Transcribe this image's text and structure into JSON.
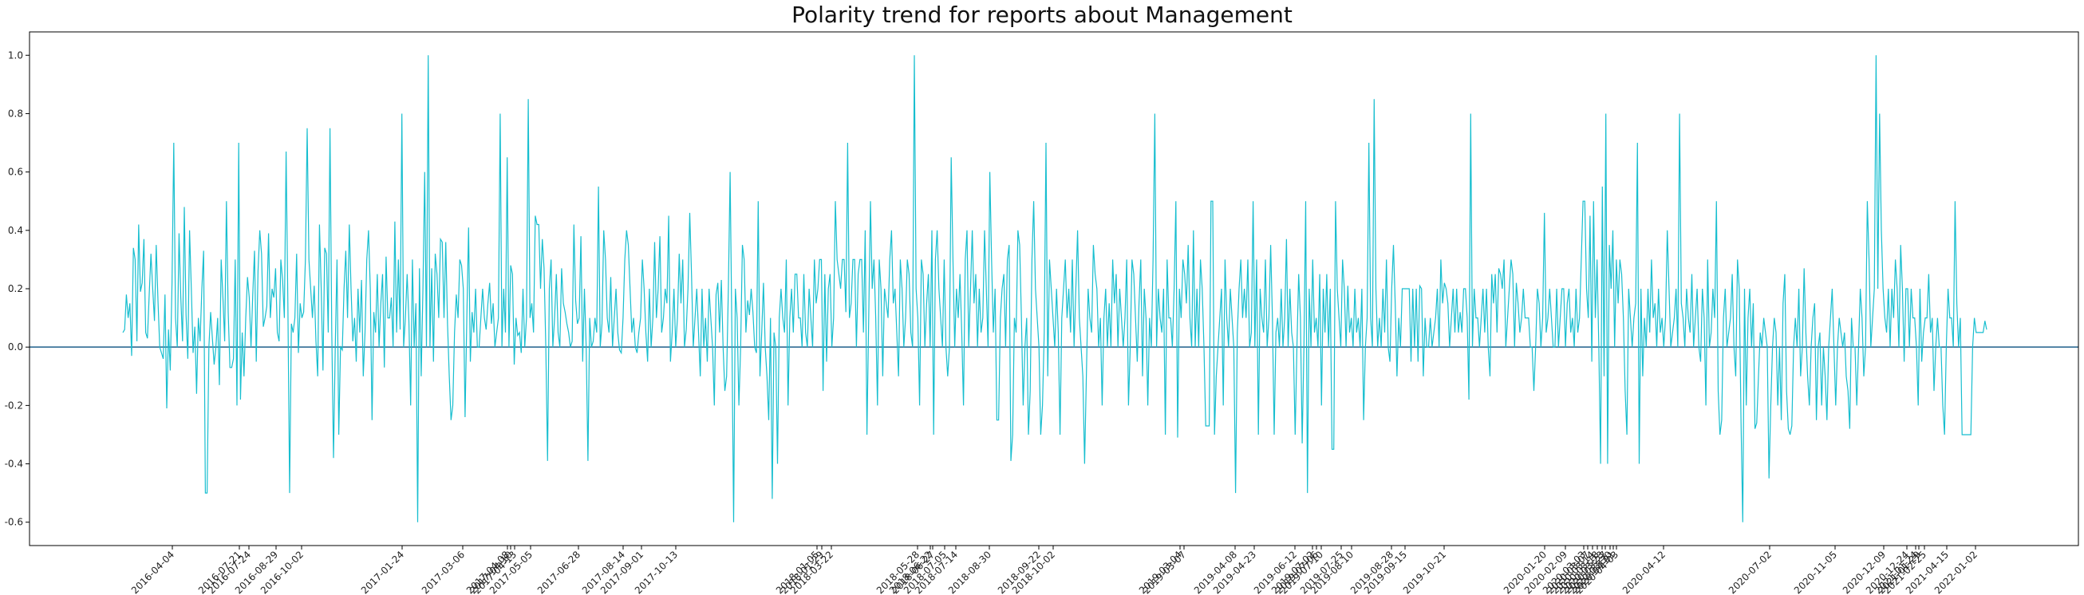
{
  "chart_data": {
    "type": "line",
    "title": "Polarity trend for reports about Management",
    "xlabel": "",
    "ylabel": "",
    "ylim": [
      -0.68,
      1.08
    ],
    "yticks": [
      -0.6,
      -0.4,
      -0.2,
      0.0,
      0.2,
      0.4,
      0.6,
      0.8,
      1.0
    ],
    "yticklabels": [
      "-0.6",
      "-0.4",
      "-0.2",
      "0.0",
      "0.2",
      "0.4",
      "0.6",
      "0.8",
      "1.0"
    ],
    "xticklabels": [
      "2016-04-04",
      "2016-07-21",
      "2016-07-24",
      "2016-08-29",
      "2016-10-02",
      "2017-01-24",
      "2017-03-06",
      "2017-04-08",
      "2017-04-10",
      "2017-04-13",
      "2017-05-05",
      "2017-06-28",
      "2017-08-14",
      "2017-09-01",
      "2017-10-13",
      "2018-01-05",
      "2018-01-29",
      "2018-03-22",
      "2018-05-28",
      "2018-06-22",
      "2018-06-27",
      "2018-07-05",
      "2018-07-14",
      "2018-08-30",
      "2018-09-22",
      "2018-10-02",
      "2019-03-04",
      "2019-03-07",
      "2019-04-08",
      "2019-04-23",
      "2019-06-12",
      "2019-07-02",
      "2019-07-06",
      "2019-07-10",
      "2019-07-25",
      "2019-08-10",
      "2019-08-28",
      "2019-09-15",
      "2019-10-21",
      "2020-01-20",
      "2020-02-09",
      "2020-03-03",
      "2020-03-07",
      "2020-03-14",
      "2020-03-18",
      "2020-03-23",
      "2020-03-27",
      "2020-03-30",
      "2020-04-01",
      "2020-04-03",
      "2020-04-12",
      "2020-07-02",
      "2020-11-05",
      "2020-12-09",
      "2020-12-24",
      "2021-01-24",
      "2021-01-29",
      "2021-02-25",
      "2021-04-15",
      "2022-01-02"
    ],
    "horizontal_line": 0.0,
    "grid": false,
    "legend": "none",
    "colors": {
      "series": "#17becf",
      "zero_line": "#1f5f8b",
      "axes": "#000000"
    },
    "series": [
      {
        "values": [
          0.05,
          0.06,
          0.18,
          0.1,
          0.15,
          -0.03,
          0.34,
          0.3,
          0.02,
          0.42,
          0.19,
          0.22,
          0.37,
          0.05,
          0.03,
          0.18,
          0.32,
          0.2,
          0.09,
          0.35,
          0.16,
          0.0,
          -0.02,
          -0.04,
          0.18,
          -0.21,
          0.06,
          -0.08,
          0.22,
          0.7,
          0.1,
          0.0,
          0.39,
          0.17,
          0.02,
          0.48,
          0.11,
          -0.04,
          0.4,
          0.2,
          -0.02,
          0.07,
          -0.16,
          0.1,
          0.02,
          0.2,
          0.33,
          -0.5,
          -0.5,
          0.0,
          0.12,
          0.03,
          -0.06,
          0.0,
          0.1,
          -0.13,
          0.3,
          0.17,
          0.02,
          0.5,
          0.12,
          -0.07,
          -0.07,
          -0.04,
          0.3,
          -0.2,
          0.7,
          -0.18,
          0.05,
          -0.1,
          0.1,
          0.24,
          0.17,
          0.0,
          0.18,
          0.33,
          -0.05,
          0.26,
          0.4,
          0.32,
          0.07,
          0.1,
          0.14,
          0.39,
          0.1,
          0.2,
          0.17,
          0.27,
          0.05,
          0.02,
          0.3,
          0.23,
          0.1,
          0.67,
          0.15,
          -0.5,
          0.08,
          0.05,
          0.1,
          0.32,
          -0.02,
          0.15,
          0.1,
          0.12,
          0.3,
          0.75,
          0.3,
          0.2,
          0.1,
          0.21,
          0.02,
          -0.1,
          0.42,
          0.2,
          -0.08,
          0.34,
          0.32,
          0.05,
          0.75,
          0.06,
          -0.38,
          0.0,
          0.3,
          -0.3,
          0.0,
          -0.01,
          0.2,
          0.33,
          0.1,
          0.42,
          0.2,
          0.02,
          0.1,
          -0.05,
          0.2,
          0.05,
          0.23,
          -0.1,
          0.05,
          0.3,
          0.4,
          0.2,
          -0.25,
          0.12,
          0.05,
          0.25,
          0.0,
          0.15,
          0.25,
          -0.07,
          0.31,
          0.1,
          0.1,
          0.17,
          0.0,
          0.43,
          0.05,
          0.3,
          0.06,
          0.8,
          0.0,
          0.1,
          0.25,
          0.09,
          -0.2,
          0.3,
          0.0,
          0.15,
          -0.6,
          0.27,
          -0.1,
          0.2,
          0.6,
          0.0,
          1.0,
          0.0,
          0.27,
          -0.05,
          0.32,
          0.25,
          0.1,
          0.37,
          0.36,
          0.1,
          0.36,
          0.08,
          -0.1,
          -0.25,
          -0.2,
          0.05,
          0.18,
          0.1,
          0.3,
          0.28,
          0.2,
          -0.24,
          0.1,
          0.41,
          -0.05,
          0.12,
          0.05,
          0.2,
          0.0,
          0.0,
          0.1,
          0.2,
          0.1,
          0.06,
          0.15,
          0.22,
          0.08,
          0.15,
          0.0,
          0.05,
          0.1,
          0.8,
          0.0,
          0.2,
          0.05,
          0.65,
          0.0,
          0.28,
          0.25,
          -0.06,
          0.1,
          0.04,
          0.05,
          -0.02,
          0.2,
          0.0,
          0.1,
          0.85,
          0.1,
          0.15,
          0.05,
          0.45,
          0.42,
          0.42,
          0.2,
          0.37,
          0.27,
          0.0,
          -0.39,
          0.2,
          0.3,
          0.0,
          0.1,
          0.25,
          0.05,
          0.0,
          0.27,
          0.15,
          0.12,
          0.08,
          0.05,
          0.0,
          0.02,
          0.42,
          0.16,
          0.08,
          0.1,
          0.38,
          -0.05,
          0.2,
          0.0,
          -0.39,
          0.1,
          0.0,
          0.02,
          0.1,
          0.05,
          0.55,
          0.0,
          0.08,
          0.4,
          0.3,
          0.1,
          0.05,
          0.24,
          0.0,
          0.1,
          0.2,
          0.05,
          -0.01,
          -0.02,
          0.1,
          0.3,
          0.4,
          0.35,
          0.2,
          0.05,
          0.1,
          0.0,
          -0.02,
          0.05,
          0.1,
          0.3,
          0.2,
          0.05,
          -0.05,
          0.2,
          0.0,
          0.1,
          0.36,
          0.1,
          0.2,
          0.38,
          0.05,
          0.1,
          0.2,
          0.15,
          0.45,
          -0.05,
          0.05,
          0.2,
          0.0,
          0.1,
          0.32,
          0.15,
          0.3,
          0.0,
          0.06,
          0.2,
          0.46,
          0.25,
          0.0,
          0.1,
          0.2,
          0.05,
          -0.1,
          0.2,
          0.0,
          0.1,
          -0.05,
          0.2,
          0.1,
          0.0,
          -0.2,
          0.18,
          0.22,
          0.05,
          0.23,
          0.0,
          -0.15,
          -0.1,
          0.2,
          0.6,
          0.05,
          -0.6,
          0.2,
          0.1,
          -0.2,
          0.0,
          0.35,
          0.3,
          0.05,
          0.16,
          0.11,
          0.2,
          0.12,
          0.0,
          -0.02,
          0.5,
          -0.1,
          0.05,
          0.22,
          0.0,
          -0.1,
          -0.25,
          0.1,
          -0.52,
          0.05,
          0.0,
          -0.4,
          0.1,
          0.2,
          0.1,
          0.05,
          0.3,
          -0.2,
          0.1,
          0.2,
          0.05,
          0.25,
          0.25,
          0.1,
          0.1,
          0.0,
          0.25,
          0.05,
          0.0,
          0.2,
          0.1,
          0.0,
          0.3,
          0.15,
          0.2,
          0.3,
          0.3,
          -0.15,
          0.25,
          -0.05,
          0.2,
          0.25,
          0.0,
          0.1,
          0.5,
          0.3,
          0.25,
          0.2,
          0.3,
          0.3,
          0.12,
          0.7,
          0.1,
          0.15,
          0.3,
          0.3,
          0.0,
          0.25,
          0.3,
          0.3,
          0.05,
          0.4,
          -0.3,
          0.1,
          0.5,
          0.2,
          0.3,
          0.1,
          -0.2,
          0.3,
          0.2,
          -0.1,
          0.2,
          0.15,
          0.1,
          0.3,
          0.4,
          0.15,
          0.2,
          0.05,
          -0.1,
          0.3,
          0.2,
          0.0,
          0.1,
          0.3,
          0.25,
          0.05,
          0.0,
          1.0,
          0.2,
          0.1,
          -0.2,
          0.3,
          0.25,
          0.0,
          0.15,
          0.25,
          0.0,
          0.4,
          -0.3,
          0.3,
          0.4,
          0.2,
          0.1,
          0.0,
          0.3,
          0.0,
          -0.1,
          0.0,
          0.65,
          0.3,
          0.0,
          0.2,
          0.1,
          0.25,
          0.05,
          -0.2,
          0.3,
          0.4,
          0.0,
          0.2,
          0.4,
          0.15,
          0.25,
          0.0,
          0.2,
          0.05,
          0.1,
          0.4,
          0.2,
          0.0,
          0.6,
          0.3,
          0.05,
          0.2,
          -0.25,
          -0.25,
          0.1,
          0.2,
          0.25,
          0.0,
          0.3,
          0.35,
          -0.39,
          -0.3,
          0.1,
          0.05,
          0.4,
          0.35,
          0.1,
          -0.2,
          0.0,
          0.1,
          -0.3,
          -0.15,
          0.3,
          0.5,
          0.2,
          0.1,
          0.0,
          -0.3,
          -0.2,
          0.05,
          0.7,
          -0.1,
          0.3,
          0.2,
          0.1,
          0.0,
          0.2,
          0.05,
          -0.3,
          0.1,
          0.2,
          0.3,
          0.1,
          0.2,
          0.05,
          0.3,
          0.0,
          0.2,
          0.4,
          0.1,
          0.0,
          -0.1,
          -0.4,
          -0.1,
          0.2,
          0.1,
          0.05,
          0.35,
          0.25,
          0.2,
          0.0,
          0.1,
          -0.2,
          0.1,
          0.2,
          0.0,
          0.15,
          0.0,
          0.3,
          0.15,
          0.25,
          0.0,
          0.2,
          0.1,
          0.0,
          0.1,
          0.3,
          -0.2,
          0.0,
          0.3,
          0.25,
          0.1,
          -0.05,
          0.15,
          0.3,
          -0.1,
          0.2,
          0.1,
          -0.2,
          0.1,
          0.0,
          0.3,
          0.8,
          0.0,
          0.2,
          0.1,
          0.05,
          0.2,
          -0.3,
          0.3,
          0.1,
          0.1,
          0.0,
          0.2,
          0.5,
          -0.31,
          0.2,
          0.1,
          0.3,
          0.25,
          0.15,
          0.35,
          0.1,
          0.0,
          0.4,
          0.0,
          0.2,
          0.0,
          0.3,
          0.2,
          0.0,
          -0.27,
          -0.27,
          -0.27,
          0.5,
          0.5,
          -0.3,
          -0.1,
          0.0,
          0.1,
          0.2,
          -0.2,
          0.3,
          0.1,
          0.0,
          0.2,
          0.1,
          0.0,
          -0.5,
          0.05,
          0.2,
          0.3,
          0.1,
          0.2,
          0.1,
          0.3,
          0.0,
          0.05,
          0.5,
          0.0,
          0.3,
          -0.3,
          0.2,
          0.1,
          0.05,
          0.3,
          0.0,
          0.1,
          0.35,
          0.1,
          -0.3,
          0.05,
          0.1,
          0.0,
          0.2,
          0.0,
          0.1,
          0.37,
          0.0,
          0.2,
          0.05,
          0.0,
          -0.3,
          0.0,
          0.25,
          0.1,
          -0.33,
          0.0,
          0.5,
          -0.5,
          0.2,
          0.0,
          0.3,
          0.05,
          0.1,
          0.0,
          0.25,
          -0.2,
          0.2,
          0.05,
          0.25,
          0.0,
          0.2,
          -0.35,
          -0.35,
          0.5,
          0.2,
          0.1,
          0.0,
          0.3,
          0.2,
          0.0,
          0.21,
          0.05,
          0.1,
          0.0,
          0.2,
          0.05,
          0.1,
          0.0,
          0.2,
          -0.25,
          0.0,
          0.1,
          0.7,
          0.1,
          0.0,
          0.85,
          0.2,
          0.0,
          0.1,
          0.0,
          0.2,
          0.05,
          0.3,
          0.0,
          -0.05,
          0.2,
          0.35,
          0.15,
          -0.1,
          0.1,
          0.0,
          0.2,
          0.2,
          0.2,
          0.2,
          0.2,
          -0.05,
          0.2,
          0.0,
          0.2,
          -0.05,
          0.21,
          0.2,
          -0.1,
          0.1,
          0.0,
          0.0,
          0.1,
          0.0,
          0.05,
          0.1,
          0.2,
          0.0,
          0.3,
          0.15,
          0.22,
          0.2,
          0.15,
          0.0,
          0.1,
          0.2,
          0.05,
          0.2,
          0.05,
          0.12,
          0.05,
          0.2,
          0.2,
          0.1,
          -0.18,
          0.8,
          0.0,
          0.2,
          0.1,
          0.1,
          0.0,
          0.1,
          0.2,
          0.05,
          0.2,
          0.0,
          -0.1,
          0.25,
          0.15,
          0.25,
          0.05,
          0.27,
          0.25,
          0.2,
          0.3,
          0.0,
          0.1,
          0.2,
          0.3,
          0.25,
          0.0,
          0.22,
          0.15,
          0.05,
          0.1,
          0.2,
          0.1,
          0.1,
          0.1,
          0.0,
          0.0,
          -0.15,
          0.0,
          0.2,
          0.15,
          0.0,
          0.1,
          0.46,
          0.05,
          0.1,
          0.2,
          0.1,
          0.0,
          0.0,
          0.2,
          0.0,
          0.1,
          0.2,
          0.2,
          0.0,
          0.15,
          0.2,
          0.05,
          0.1,
          0.0,
          0.2,
          0.05,
          0.1,
          0.3,
          0.5,
          0.5,
          0.2,
          0.1,
          0.45,
          -0.05,
          0.5,
          0.1,
          0.3,
          0.0,
          -0.4,
          0.55,
          -0.1,
          0.8,
          -0.4,
          0.35,
          0.2,
          0.4,
          0.0,
          0.3,
          0.15,
          0.3,
          0.25,
          0.1,
          -0.15,
          -0.3,
          0.2,
          0.1,
          0.0,
          0.1,
          0.15,
          0.7,
          -0.4,
          0.2,
          -0.1,
          0.1,
          0.0,
          0.2,
          0.05,
          0.3,
          0.1,
          0.15,
          0.0,
          0.2,
          0.05,
          0.1,
          0.0,
          0.1,
          0.4,
          0.2,
          0.0,
          0.05,
          0.1,
          0.2,
          0.0,
          0.8,
          0.15,
          0.1,
          0.0,
          0.2,
          0.1,
          0.05,
          0.25,
          0.0,
          0.1,
          0.2,
          0.0,
          -0.05,
          0.2,
          0.1,
          -0.2,
          0.3,
          0.0,
          0.05,
          0.2,
          0.1,
          0.5,
          -0.15,
          -0.3,
          -0.25,
          0.1,
          0.2,
          0.0,
          0.05,
          0.1,
          0.25,
          0.0,
          -0.1,
          0.3,
          0.2,
          -0.25,
          -0.6,
          0.2,
          -0.2,
          0.1,
          0.2,
          0.0,
          0.15,
          -0.28,
          -0.26,
          -0.1,
          0.05,
          0.0,
          0.1,
          0.05,
          0.0,
          -0.45,
          -0.2,
          0.0,
          0.1,
          0.05,
          -0.2,
          0.0,
          -0.25,
          0.15,
          0.25,
          -0.15,
          -0.28,
          -0.3,
          -0.27,
          0.0,
          0.1,
          0.0,
          0.2,
          -0.1,
          0.0,
          0.27,
          0.05,
          -0.1,
          -0.2,
          0.0,
          0.1,
          0.15,
          -0.25,
          0.0,
          0.05,
          -0.2,
          0.0,
          -0.1,
          -0.25,
          0.0,
          0.1,
          0.2,
          0.0,
          -0.2,
          0.0,
          0.1,
          0.05,
          0.0,
          0.05,
          -0.1,
          -0.15,
          -0.28,
          0.1,
          0.0,
          0.0,
          -0.2,
          0.0,
          0.2,
          0.1,
          -0.1,
          0.0,
          0.5,
          0.3,
          0.0,
          0.1,
          0.2,
          1.0,
          0.2,
          0.8,
          0.4,
          0.2,
          0.1,
          0.05,
          0.2,
          0.0,
          0.2,
          0.1,
          0.3,
          0.2,
          0.0,
          0.35,
          0.2,
          -0.05,
          0.2,
          0.2,
          0.0,
          0.2,
          0.1,
          0.1,
          0.0,
          -0.2,
          0.2,
          -0.05,
          0.05,
          0.1,
          0.1,
          0.25,
          0.05,
          0.1,
          -0.15,
          0.0,
          0.1,
          0.0,
          0.0,
          -0.2,
          -0.3,
          0.0,
          0.2,
          0.1,
          0.1,
          0.0,
          0.5,
          0.15,
          0.0,
          0.1,
          -0.3,
          -0.3,
          -0.3,
          -0.3,
          -0.3,
          -0.3,
          0.0,
          0.1,
          0.05,
          0.05,
          0.05,
          0.05,
          0.05,
          0.09,
          0.06
        ]
      }
    ]
  }
}
